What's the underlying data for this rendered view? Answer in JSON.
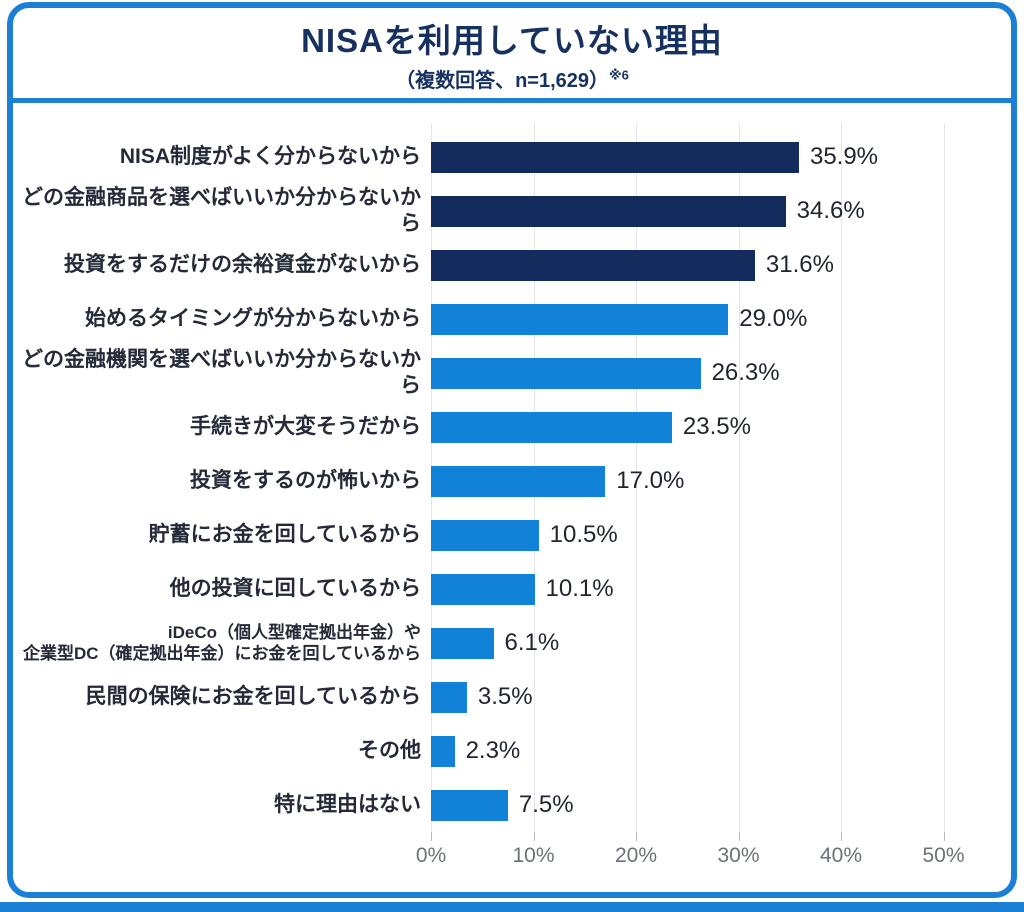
{
  "header": {
    "title": "NISAを利用していない理由",
    "subtitle": "（複数回答、n=1,629）",
    "subtitle_note": "※6"
  },
  "chart_data": {
    "type": "bar",
    "orientation": "horizontal",
    "title": "NISAを利用していない理由",
    "subtitle": "（複数回答、n=1,629）※6",
    "xlabel": "",
    "ylabel": "",
    "xlim": [
      0,
      52
    ],
    "grid": "vertical-on",
    "legend": "none",
    "categories": [
      "NISA制度がよく分からないから",
      "どの金融商品を選べばいいか分からないから",
      "投資をするだけの余裕資金がないから",
      "始めるタイミングが分からないから",
      "どの金融機関を選べばいいか分からないから",
      "手続きが大変そうだから",
      "投資をするのが怖いから",
      "貯蓄にお金を回しているから",
      "他の投資に回しているから",
      "iDeCo（個人型確定拠出年金）や\n企業型DC（確定拠出年金）にお金を回しているから",
      "民間の保険にお金を回しているから",
      "その他",
      "特に理由はない"
    ],
    "values": [
      35.9,
      34.6,
      31.6,
      29.0,
      26.3,
      23.5,
      17.0,
      10.5,
      10.1,
      6.1,
      3.5,
      2.3,
      7.5
    ],
    "value_labels": [
      "35.9%",
      "34.6%",
      "31.6%",
      "29.0%",
      "26.3%",
      "23.5%",
      "17.0%",
      "10.5%",
      "10.1%",
      "6.1%",
      "3.5%",
      "2.3%",
      "7.5%"
    ],
    "bar_colors": [
      "#132a5c",
      "#132a5c",
      "#132a5c",
      "#1182d8",
      "#1182d8",
      "#1182d8",
      "#1182d8",
      "#1182d8",
      "#1182d8",
      "#1182d8",
      "#1182d8",
      "#1182d8",
      "#1182d8"
    ],
    "tick_percents": [
      0,
      10,
      20,
      30,
      40,
      50
    ],
    "tick_labels": [
      "0%",
      "10%",
      "20%",
      "30%",
      "40%",
      "50%"
    ]
  },
  "colors": {
    "accent_border": "#1b80d5",
    "dark_bar": "#132a5c",
    "blue_bar": "#1182d8",
    "title_text": "#16305f",
    "label_text": "#252a38",
    "value_text": "#1f242e",
    "axis_text": "#6d7278",
    "gridline": "#e3e4e6"
  }
}
